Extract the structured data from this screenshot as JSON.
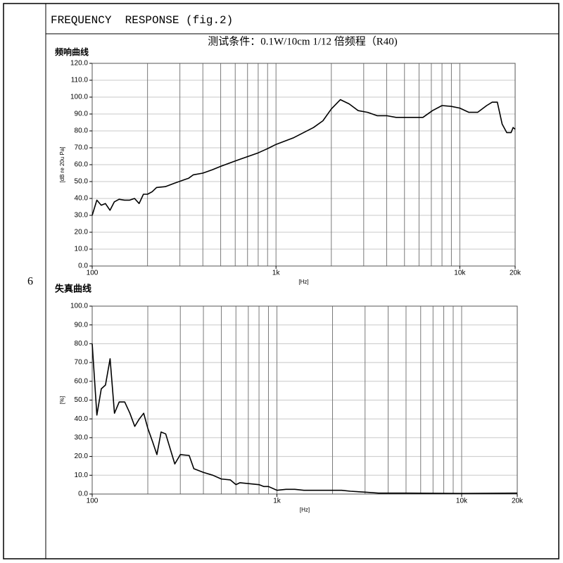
{
  "row_number": "6",
  "header": {
    "title": "FREQUENCY  RESPONSE (fig.2)"
  },
  "chart_data": [
    {
      "type": "line",
      "title": "频响曲线",
      "subtitle": "测试条件：0.1W/10cm 1/12 倍频程（R40)",
      "x_label": "[Hz]",
      "y_label": "[dB re 20u Pa]",
      "xscale": "log",
      "color": "#000000",
      "x": [
        100,
        106,
        112,
        118,
        125,
        132,
        140,
        150,
        160,
        170,
        180,
        190,
        200,
        212,
        224,
        250,
        280,
        315,
        335,
        355,
        400,
        450,
        500,
        560,
        630,
        710,
        800,
        900,
        1000,
        1250,
        1600,
        1800,
        2000,
        2240,
        2500,
        2800,
        3150,
        3550,
        4000,
        4500,
        5000,
        5600,
        6300,
        7100,
        8000,
        9000,
        10000,
        11200,
        12500,
        14000,
        15000,
        16000,
        17000,
        18000,
        19000,
        19500,
        20000
      ],
      "values": [
        30,
        39,
        36,
        37,
        33,
        38,
        39.5,
        39,
        39,
        40,
        37,
        42.5,
        42.5,
        44,
        46.5,
        47,
        49,
        51,
        52,
        54,
        55,
        57,
        59,
        61,
        63,
        65,
        67,
        69.5,
        72,
        76,
        82,
        86,
        93,
        98.5,
        96,
        92,
        91,
        89,
        89,
        88,
        88,
        88,
        88,
        92,
        95,
        94.5,
        93.5,
        91,
        91,
        95,
        97,
        97,
        84,
        79,
        79,
        82,
        81
      ],
      "xlim": [
        100,
        20000
      ],
      "xticks": [
        100,
        {
          "value": 1000,
          "label": "1k"
        },
        {
          "value": 10000,
          "label": "10k"
        },
        {
          "value": 20000,
          "label": "20k"
        }
      ],
      "x_gridlines": [
        200,
        300,
        400,
        500,
        600,
        700,
        800,
        900,
        1000,
        2000,
        3000,
        4000,
        5000,
        6000,
        7000,
        8000,
        9000,
        10000,
        20000
      ],
      "ylim": [
        0,
        120
      ],
      "yticks": [
        {
          "value": 0,
          "label": "0.0"
        },
        {
          "value": 10,
          "label": "10.0"
        },
        {
          "value": 20,
          "label": "20.0"
        },
        {
          "value": 30,
          "label": "30.0"
        },
        {
          "value": 40,
          "label": "40.0"
        },
        {
          "value": 50,
          "label": "50.0"
        },
        {
          "value": 60,
          "label": "60.0"
        },
        {
          "value": 70,
          "label": "70.0"
        },
        {
          "value": 80,
          "label": "80.0"
        },
        {
          "value": 90,
          "label": "90.0"
        },
        {
          "value": 100,
          "label": "100.0"
        },
        {
          "value": 110,
          "label": "110.0"
        },
        {
          "value": 120,
          "label": "120.0"
        }
      ],
      "grid": true
    },
    {
      "type": "line",
      "title": "失真曲线",
      "x_label": "[Hz]",
      "y_label": "[%]",
      "xscale": "log",
      "color": "#000000",
      "x": [
        100,
        106,
        112,
        118,
        125,
        132,
        140,
        150,
        160,
        170,
        180,
        190,
        200,
        212,
        224,
        236,
        250,
        280,
        300,
        335,
        355,
        400,
        450,
        500,
        560,
        600,
        630,
        710,
        800,
        850,
        900,
        1000,
        1120,
        1250,
        1400,
        1600,
        2000,
        2240,
        2500,
        3000,
        3550,
        4000,
        5000,
        10000,
        20000
      ],
      "values": [
        80,
        42,
        56,
        58,
        72,
        43,
        49,
        49,
        43,
        36,
        40,
        43,
        35,
        28,
        21,
        33,
        32,
        16,
        21,
        20.5,
        13.5,
        11.5,
        10,
        8,
        7.5,
        5,
        6,
        5.5,
        5,
        4,
        4,
        2,
        2.5,
        2.5,
        2,
        2,
        2,
        2,
        1.5,
        1,
        0.5,
        0.5,
        0.5,
        0.3,
        0.5
      ],
      "xlim": [
        100,
        20000
      ],
      "xticks": [
        100,
        {
          "value": 1000,
          "label": "1k"
        },
        {
          "value": 10000,
          "label": "10k"
        },
        {
          "value": 20000,
          "label": "20k"
        }
      ],
      "x_gridlines": [
        200,
        300,
        400,
        500,
        600,
        700,
        800,
        900,
        1000,
        2000,
        3000,
        4000,
        5000,
        6000,
        7000,
        8000,
        9000,
        10000,
        20000
      ],
      "ylim": [
        0,
        100
      ],
      "yticks": [
        {
          "value": 0,
          "label": "0.0"
        },
        {
          "value": 10,
          "label": "10.0"
        },
        {
          "value": 20,
          "label": "20.0"
        },
        {
          "value": 30,
          "label": "30.0"
        },
        {
          "value": 40,
          "label": "40.0"
        },
        {
          "value": 50,
          "label": "50.0"
        },
        {
          "value": 60,
          "label": "60.0"
        },
        {
          "value": 70,
          "label": "70.0"
        },
        {
          "value": 80,
          "label": "80.0"
        },
        {
          "value": 90,
          "label": "90.0"
        },
        {
          "value": 100,
          "label": "100.0"
        }
      ],
      "grid": true
    }
  ]
}
